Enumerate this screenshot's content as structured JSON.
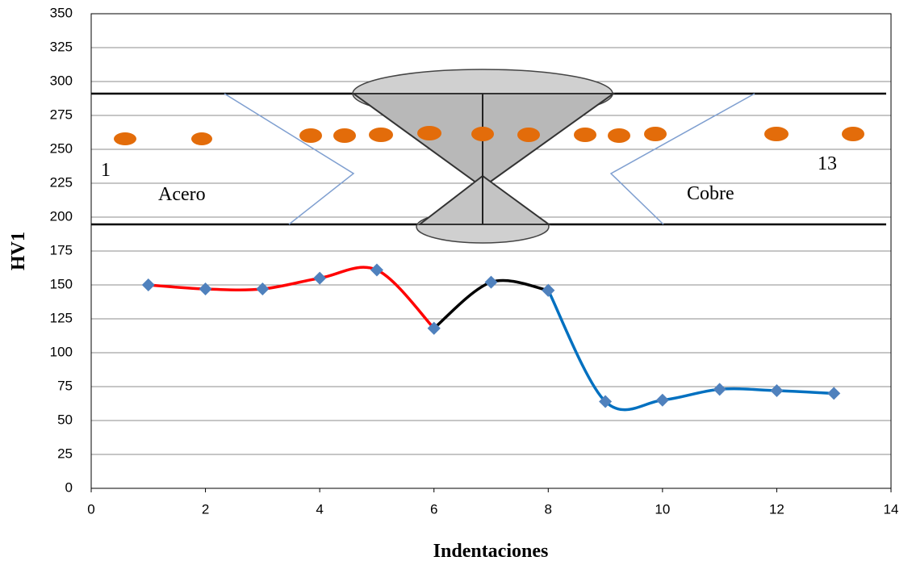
{
  "chart_data": {
    "type": "line",
    "xlabel": "Indentaciones",
    "ylabel": "HV1",
    "xlim": [
      0,
      14
    ],
    "xticks": [
      0,
      2,
      4,
      6,
      8,
      10,
      12,
      14
    ],
    "ylim": [
      0,
      350
    ],
    "yticks": [
      0,
      25,
      50,
      75,
      100,
      125,
      150,
      175,
      200,
      225,
      250,
      275,
      300,
      325,
      350
    ],
    "grid": true,
    "smooth": true,
    "marker": "diamond",
    "marker_color": "#4f81bd",
    "series": [
      {
        "color": "#ff0000",
        "x": [
          1,
          2,
          3,
          4,
          5,
          6
        ],
        "values": [
          150,
          147,
          147,
          155,
          161,
          118
        ]
      },
      {
        "color": "#000000",
        "x": [
          6,
          7,
          8
        ],
        "values": [
          118,
          152,
          146
        ]
      },
      {
        "color": "#0070c0",
        "x": [
          8,
          9,
          10,
          11,
          12,
          13
        ],
        "values": [
          146,
          64,
          65,
          73,
          72,
          70
        ]
      }
    ],
    "annotations": [
      "1",
      "Acero",
      "13",
      "Cobre"
    ]
  }
}
